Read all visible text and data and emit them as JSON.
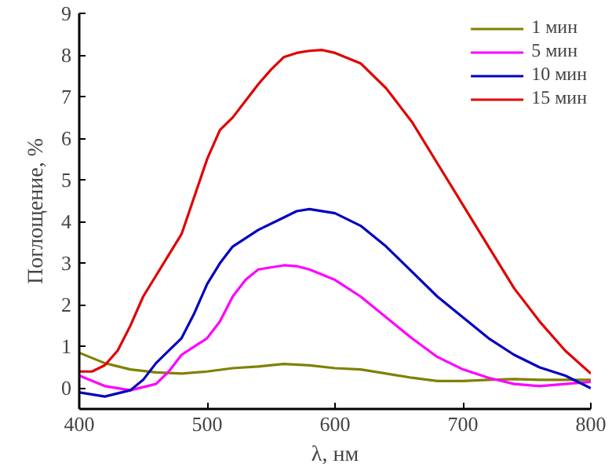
{
  "chart_data": {
    "type": "line",
    "xlabel": "λ, нм",
    "ylabel": "Поглощение, %",
    "xlim": [
      400,
      800
    ],
    "ylim": [
      -0.5,
      9
    ],
    "xticks": [
      400,
      500,
      600,
      700,
      800
    ],
    "yticks": [
      0,
      1,
      2,
      3,
      4,
      5,
      6,
      7,
      8,
      9
    ],
    "grid": false,
    "legend": "top right",
    "marker": "none",
    "line_style": "solid",
    "series": [
      {
        "name": "1 мин",
        "color": "#808000",
        "x": [
          400,
          420,
          440,
          460,
          480,
          500,
          520,
          540,
          560,
          580,
          600,
          620,
          640,
          660,
          680,
          700,
          720,
          740,
          760,
          780,
          800
        ],
        "values": [
          0.85,
          0.6,
          0.45,
          0.38,
          0.35,
          0.4,
          0.48,
          0.52,
          0.58,
          0.55,
          0.48,
          0.45,
          0.35,
          0.25,
          0.17,
          0.17,
          0.2,
          0.22,
          0.2,
          0.2,
          0.2
        ]
      },
      {
        "name": "5 мин",
        "color": "#ff00ff",
        "x": [
          400,
          420,
          440,
          460,
          470,
          480,
          500,
          510,
          520,
          530,
          540,
          560,
          570,
          580,
          600,
          620,
          640,
          660,
          680,
          700,
          720,
          740,
          760,
          780,
          800
        ],
        "values": [
          0.3,
          0.05,
          -0.05,
          0.1,
          0.4,
          0.8,
          1.2,
          1.6,
          2.2,
          2.6,
          2.85,
          2.95,
          2.93,
          2.85,
          2.6,
          2.2,
          1.7,
          1.2,
          0.75,
          0.45,
          0.25,
          0.1,
          0.05,
          0.1,
          0.15
        ]
      },
      {
        "name": "10 мин",
        "color": "#0000c0",
        "x": [
          400,
          420,
          440,
          450,
          460,
          470,
          480,
          490,
          500,
          510,
          520,
          540,
          560,
          570,
          580,
          600,
          620,
          640,
          660,
          680,
          700,
          720,
          740,
          760,
          780,
          800
        ],
        "values": [
          -0.1,
          -0.2,
          -0.05,
          0.2,
          0.6,
          0.9,
          1.2,
          1.8,
          2.5,
          3.0,
          3.4,
          3.8,
          4.1,
          4.25,
          4.3,
          4.2,
          3.9,
          3.4,
          2.8,
          2.2,
          1.7,
          1.2,
          0.8,
          0.5,
          0.3,
          0.0
        ]
      },
      {
        "name": "15 мин",
        "color": "#e00000",
        "x": [
          400,
          410,
          420,
          430,
          440,
          450,
          460,
          470,
          480,
          490,
          500,
          510,
          520,
          530,
          540,
          550,
          560,
          570,
          580,
          590,
          600,
          620,
          640,
          660,
          680,
          700,
          720,
          740,
          760,
          780,
          800
        ],
        "values": [
          0.4,
          0.4,
          0.55,
          0.9,
          1.5,
          2.2,
          2.7,
          3.2,
          3.7,
          4.6,
          5.5,
          6.2,
          6.5,
          6.9,
          7.3,
          7.65,
          7.95,
          8.05,
          8.1,
          8.12,
          8.05,
          7.8,
          7.2,
          6.4,
          5.4,
          4.4,
          3.4,
          2.4,
          1.6,
          0.9,
          0.35
        ]
      }
    ]
  }
}
